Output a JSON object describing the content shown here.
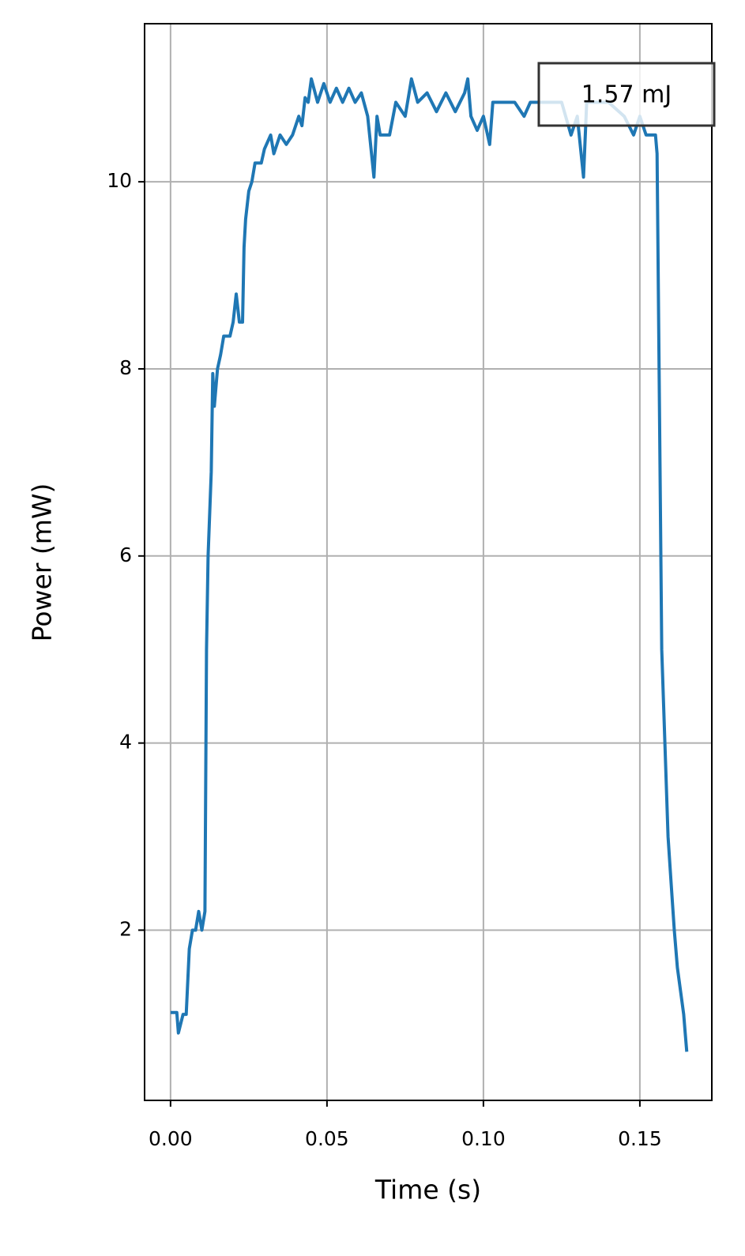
{
  "chart_data": {
    "type": "line",
    "xlabel": "Time (s)",
    "ylabel": "Power (mW)",
    "annotation": "1.57 mJ",
    "color": "#1f77b4",
    "grid": true,
    "xlim": [
      -0.0083,
      0.173
    ],
    "ylim": [
      0.18,
      11.69
    ],
    "xticks": [
      {
        "value": 0,
        "label": "0.00"
      },
      {
        "value": 0.05,
        "label": "0.05"
      },
      {
        "value": 0.1,
        "label": "0.10"
      },
      {
        "value": 0.15,
        "label": "0.15"
      }
    ],
    "yticks": [
      2,
      4,
      6,
      8,
      10
    ],
    "x": [
      0,
      0.002,
      0.0025,
      0.004,
      0.005,
      0.006,
      0.007,
      0.008,
      0.009,
      0.01,
      0.011,
      0.0115,
      0.012,
      0.013,
      0.0135,
      0.014,
      0.015,
      0.016,
      0.017,
      0.019,
      0.02,
      0.021,
      0.022,
      0.023,
      0.0235,
      0.024,
      0.025,
      0.026,
      0.027,
      0.029,
      0.03,
      0.032,
      0.033,
      0.035,
      0.037,
      0.039,
      0.041,
      0.042,
      0.043,
      0.044,
      0.045,
      0.047,
      0.049,
      0.051,
      0.053,
      0.055,
      0.057,
      0.059,
      0.061,
      0.063,
      0.065,
      0.066,
      0.067,
      0.07,
      0.072,
      0.075,
      0.077,
      0.079,
      0.082,
      0.085,
      0.088,
      0.091,
      0.094,
      0.095,
      0.096,
      0.098,
      0.1,
      0.102,
      0.103,
      0.11,
      0.113,
      0.115,
      0.125,
      0.128,
      0.13,
      0.132,
      0.133,
      0.14,
      0.145,
      0.148,
      0.15,
      0.152,
      0.155,
      0.1555,
      0.157,
      0.159,
      0.16,
      0.161,
      0.162,
      0.163,
      0.164,
      0.1645,
      0.165
    ],
    "values": [
      1.12,
      1.12,
      0.9,
      1.1,
      1.1,
      1.8,
      2.0,
      2.0,
      2.2,
      2.0,
      2.2,
      5.0,
      6.0,
      6.9,
      7.95,
      7.6,
      8.0,
      8.15,
      8.35,
      8.35,
      8.5,
      8.8,
      8.5,
      8.5,
      9.3,
      9.6,
      9.9,
      10.0,
      10.2,
      10.2,
      10.35,
      10.5,
      10.3,
      10.5,
      10.4,
      10.5,
      10.7,
      10.6,
      10.9,
      10.85,
      11.1,
      10.85,
      11.05,
      10.85,
      11.0,
      10.85,
      11.0,
      10.85,
      10.95,
      10.7,
      10.05,
      10.7,
      10.5,
      10.5,
      10.85,
      10.7,
      11.1,
      10.85,
      10.95,
      10.75,
      10.95,
      10.75,
      10.95,
      11.1,
      10.7,
      10.55,
      10.7,
      10.4,
      10.85,
      10.85,
      10.7,
      10.85,
      10.85,
      10.5,
      10.7,
      10.05,
      10.85,
      10.85,
      10.7,
      10.5,
      10.7,
      10.5,
      10.5,
      10.3,
      5.0,
      3.0,
      2.5,
      2.0,
      1.6,
      1.35,
      1.1,
      0.9,
      0.7
    ]
  }
}
